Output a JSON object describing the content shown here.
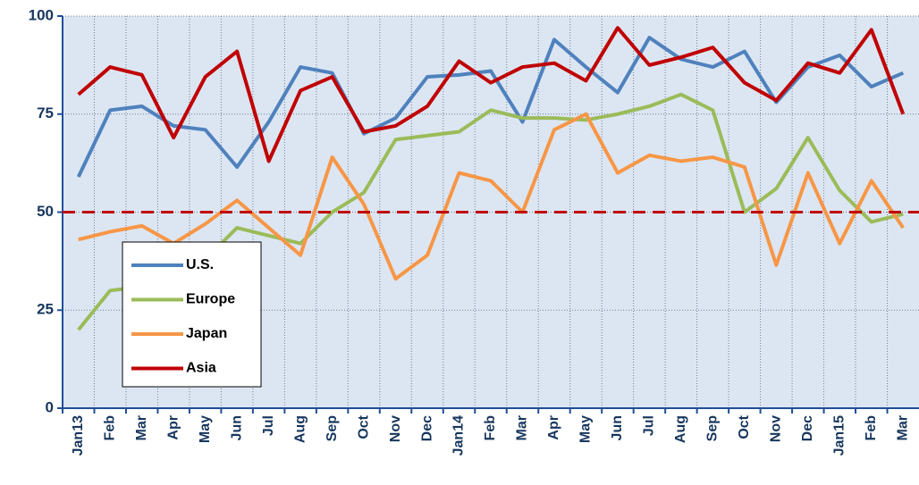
{
  "chart_data": {
    "type": "line",
    "categories": [
      "Jan13",
      "Feb",
      "Mar",
      "Apr",
      "May",
      "Jun",
      "Jul",
      "Aug",
      "Sep",
      "Oct",
      "Nov",
      "Dec",
      "Jan14",
      "Feb",
      "Mar",
      "Apr",
      "May",
      "Jun",
      "Jul",
      "Aug",
      "Sep",
      "Oct",
      "Nov",
      "Dec",
      "Jan15",
      "Feb",
      "Mar"
    ],
    "series": [
      {
        "name": "U.S.",
        "color": "#4f81bd",
        "values": [
          59,
          76,
          77,
          72,
          71,
          61.5,
          73,
          87,
          85.5,
          70,
          74,
          84.5,
          85,
          86,
          73,
          94,
          87,
          80.5,
          94.5,
          89,
          87,
          91,
          78,
          87,
          90,
          82,
          85.5
        ]
      },
      {
        "name": "Europe",
        "color": "#9bbb59",
        "values": [
          20,
          30,
          31,
          33,
          38,
          46,
          44,
          42,
          50,
          55,
          68.5,
          69.5,
          70.5,
          76,
          74,
          74,
          73.5,
          75,
          77,
          80,
          76,
          50,
          56,
          69,
          55.5,
          47.5,
          49.5
        ]
      },
      {
        "name": "Japan",
        "color": "#f79646",
        "values": [
          43,
          45,
          46.5,
          42,
          47,
          53,
          46,
          39,
          64,
          52,
          33,
          39,
          60,
          58,
          50,
          71,
          75,
          60,
          64.5,
          63,
          64,
          61.5,
          36.5,
          60,
          42,
          58,
          46
        ]
      },
      {
        "name": "Asia",
        "color": "#c00000",
        "values": [
          80,
          87,
          85,
          69,
          84.5,
          91,
          63,
          81,
          84.5,
          70.5,
          72,
          77,
          88.5,
          83,
          87,
          88,
          83.5,
          97,
          87.5,
          89.5,
          92,
          83,
          78.5,
          88,
          85.5,
          96.5,
          75
        ]
      }
    ],
    "reference_line": {
      "value": 50,
      "color": "#c00000"
    },
    "ylim": [
      0,
      100
    ],
    "yticks": [
      0,
      25,
      50,
      75,
      100
    ],
    "grid": true,
    "legend": "lower left"
  }
}
